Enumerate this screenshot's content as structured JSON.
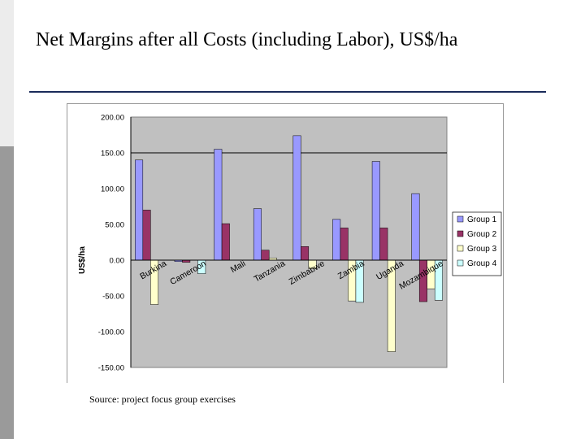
{
  "slide": {
    "title": "Net Margins after all Costs (including Labor), US$/ha",
    "source": "Source: project focus group exercises"
  },
  "colors": {
    "plot_bg": "#c0c0c0",
    "group1": "#9999ff",
    "group2": "#993366",
    "group3": "#ffffcc",
    "group4": "#ccffff"
  },
  "chart_data": {
    "type": "bar",
    "ylabel": "US$/ha",
    "ylim": [
      -150,
      200
    ],
    "yticks": [
      "200.00",
      "150.00",
      "100.00",
      "50.00",
      "0.00",
      "-50.00",
      "-100.00",
      "-150.00"
    ],
    "ytick_values": [
      200,
      150,
      100,
      50,
      0,
      -50,
      -100,
      -150
    ],
    "categories": [
      "Burkina",
      "Cameroon",
      "Mali",
      "Tanzania",
      "Zimbabwe",
      "Zambia",
      "Uganda",
      "Mozambique"
    ],
    "series": [
      {
        "name": "Group 1",
        "values": [
          140,
          -2,
          155,
          72,
          174,
          57,
          138,
          93
        ]
      },
      {
        "name": "Group 2",
        "values": [
          70,
          -3,
          51,
          14,
          19,
          45,
          45,
          -58
        ]
      },
      {
        "name": "Group 3",
        "values": [
          -62,
          null,
          null,
          3,
          -12,
          -57,
          -128,
          -40
        ]
      },
      {
        "name": "Group 4",
        "values": [
          null,
          -19,
          null,
          null,
          null,
          -59,
          null,
          -56
        ]
      }
    ],
    "grid": "horizontal at 150",
    "legend": "right"
  }
}
